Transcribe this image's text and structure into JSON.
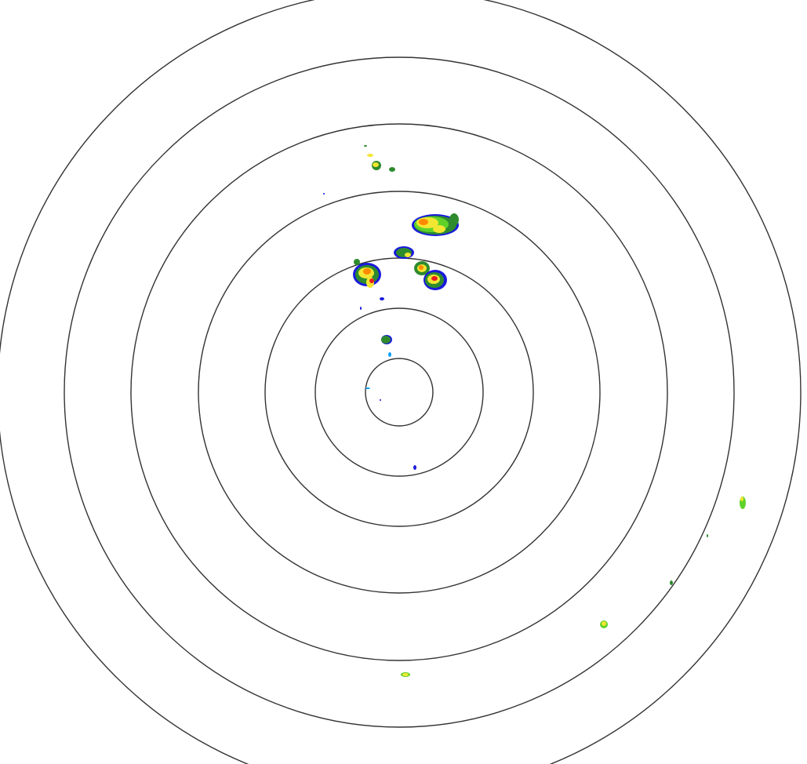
{
  "radar": {
    "range_ring_count": 7,
    "colors": {
      "ring": "#333333",
      "background": "#ffffff",
      "weak": "#1a1adc",
      "light": "#0aa0ff",
      "moderate_low": "#2e8b2e",
      "moderate": "#5fd22a",
      "heavy": "#f2e632",
      "very_heavy": "#ff8a00",
      "intense": "#e81e1e"
    }
  }
}
